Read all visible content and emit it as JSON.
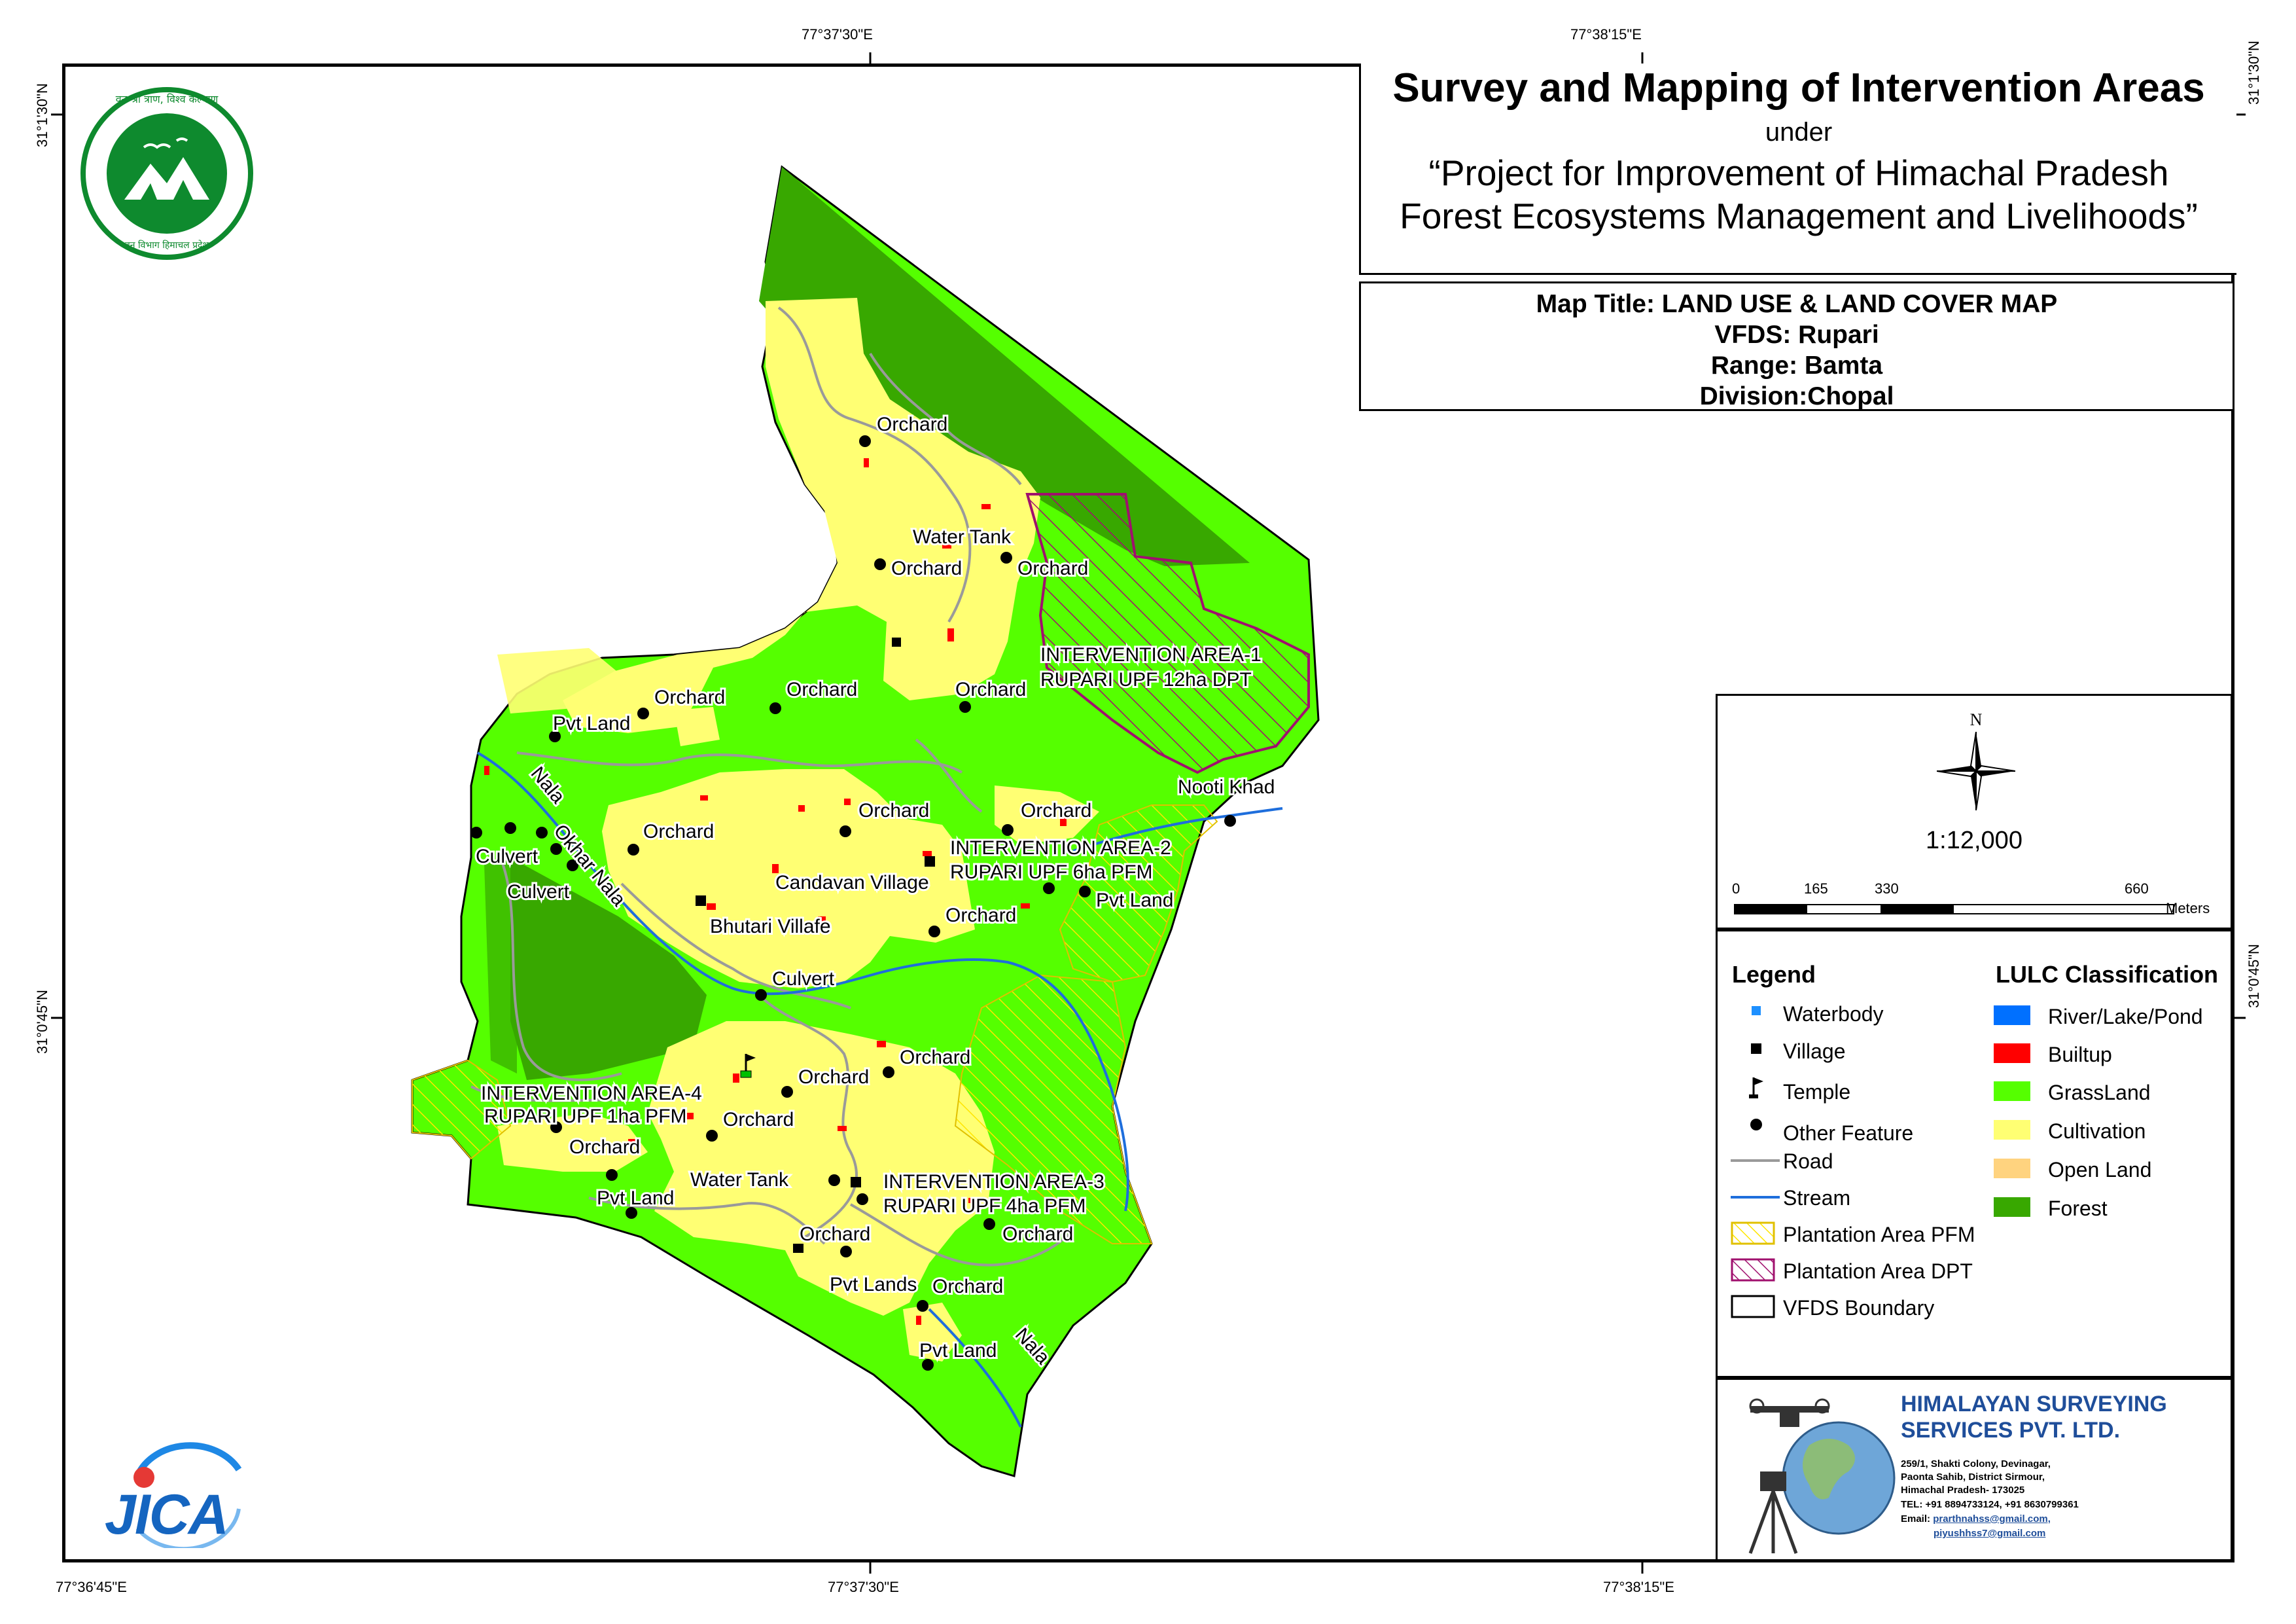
{
  "coords": {
    "top": [
      "77°37'30\"E",
      "77°38'15\"E"
    ],
    "bottom": [
      "77°36'45\"E",
      "77°37'30\"E",
      "77°38'15\"E"
    ],
    "left": [
      "31°1'30\"N",
      "31°0'45\"N"
    ],
    "right": [
      "31°1'30\"N",
      "31°0'45\"N"
    ]
  },
  "title": {
    "main": "Survey and Mapping of Intervention Areas",
    "under": "under",
    "project_line1": "“Project for Improvement of Himachal Pradesh",
    "project_line2": "Forest Ecosystems Management and Livelihoods”"
  },
  "map_info": {
    "map_title": "Map Title: LAND USE & LAND COVER MAP",
    "vfds": "VFDS: Rupari",
    "range": "Range: Bamta",
    "division": "Division:Chopal"
  },
  "scale": {
    "north": "N",
    "ratio": "1:12,000",
    "ticks": [
      "0",
      "165",
      "330",
      "660"
    ],
    "unit": "Meters"
  },
  "legend": {
    "title": "Legend",
    "items": [
      {
        "label": "Waterbody",
        "icon": "blue-square"
      },
      {
        "label": "Village",
        "icon": "black-square"
      },
      {
        "label": "Temple",
        "icon": "flag"
      },
      {
        "label": "Other Feature",
        "icon": "black-dot"
      },
      {
        "label": "Road",
        "icon": "grey-line"
      },
      {
        "label": "Stream",
        "icon": "blue-line"
      },
      {
        "label": "Plantation Area PFM",
        "icon": "yellow-hatch"
      },
      {
        "label": "Plantation Area DPT",
        "icon": "magenta-hatch"
      },
      {
        "label": "VFDS Boundary",
        "icon": "black-outline"
      }
    ]
  },
  "lulc": {
    "title": "LULC Classification",
    "classes": [
      {
        "label": "River/Lake/Pond",
        "color": "#0070FF"
      },
      {
        "label": "Builtup",
        "color": "#FF0000"
      },
      {
        "label": "GrassLand",
        "color": "#55FF00"
      },
      {
        "label": "Cultivation",
        "color": "#FFFF73"
      },
      {
        "label": "Open Land",
        "color": "#FFD37F"
      },
      {
        "label": "Forest",
        "color": "#38A800"
      }
    ]
  },
  "map_labels": {
    "orchard": "Orchard",
    "water_tank": "Water Tank",
    "pvt_land": "Pvt Land",
    "pvt_lands": "Pvt Lands",
    "culvert": "Culvert",
    "nala": "Nala",
    "okhar_nala": "Okhar Nala",
    "nooti_khad": "Nooti Khad",
    "candavan_village": "Candavan Village",
    "bhutari_villafe": "Bhutari Villafe",
    "ia1_l1": "INTERVENTION AREA-1",
    "ia1_l2": "RUPARI UPF 12ha DPT",
    "ia2_l1": "INTERVENTION AREA-2",
    "ia2_l2": "RUPARI UPF 6ha PFM",
    "ia3_l1": "INTERVENTION AREA-3",
    "ia3_l2": "RUPARI UPF 4ha PFM",
    "ia4_l1": "INTERVENTION AREA-4",
    "ia4_l2": "RUPARI UPF 1ha PFM"
  },
  "company": {
    "name_line1": "HIMALAYAN SURVEYING",
    "name_line2": "SERVICES PVT. LTD.",
    "address1": "259/1, Shakti Colony, Devinagar,",
    "address2": "Paonta Sahib, District Sirmour,",
    "address3": "Himachal Pradesh- 173025",
    "tel": "TEL: +91 8894733124, +91 8630799361",
    "email_label": "Email:",
    "email1": "prarthnahss@gmail.com,",
    "email2": "piyushhss7@gmail.com"
  },
  "logos": {
    "forest_dept_text": "वन श्री त्राण, विश्व कल्याण",
    "forest_dept_bottom": "वन विभाग हिमाचल प्रदेश",
    "jica": "JICA"
  }
}
